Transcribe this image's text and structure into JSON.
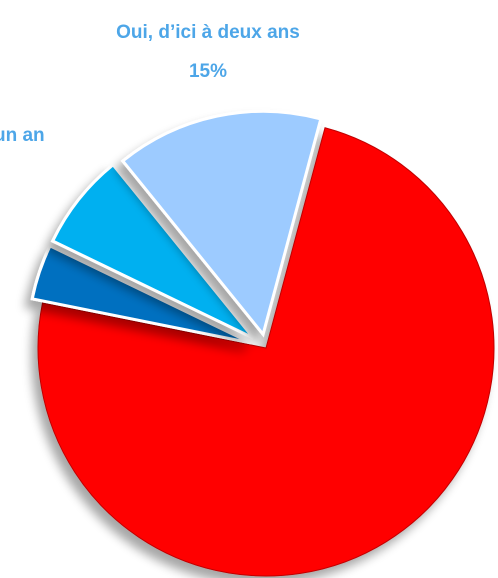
{
  "chart_data": {
    "type": "pie",
    "exploded": true,
    "slices": [
      {
        "label": "",
        "value": 74,
        "value_label": "",
        "color": "#ff0000"
      },
      {
        "label": "",
        "value": 4,
        "value_label": "",
        "color": "#0070c0"
      },
      {
        "label": "…un an",
        "value": 7,
        "value_label": "",
        "color": "#00b0f0"
      },
      {
        "label": "Oui, d’ici à deux ans",
        "value": 15,
        "value_label": "15%",
        "color": "#9dcbff"
      }
    ],
    "label_color": "#4da6e8"
  }
}
